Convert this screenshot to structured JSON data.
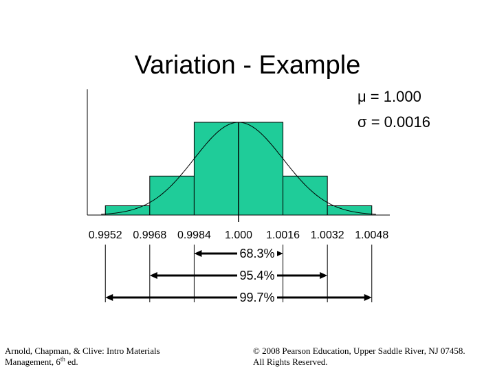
{
  "slide": {
    "title": "Variation - Example",
    "footer_left": {
      "line1": "Arnold, Chapman, & Clive: Intro Materials",
      "line2_pre": "Management, 6",
      "line2_sup": "th",
      "line2_post": " ed."
    },
    "footer_right": {
      "line1": "© 2008 Pearson Education, Upper Saddle River, NJ 07458.",
      "line2": "All Rights Reserved."
    }
  },
  "chart_data": {
    "type": "bar",
    "categories": [
      "0.9952",
      "0.9968",
      "0.9984",
      "1.000",
      "1.0016",
      "1.0032",
      "1.0048"
    ],
    "bars": [
      {
        "from": 0.9952,
        "to": 0.9968,
        "value": 0.1
      },
      {
        "from": 0.9968,
        "to": 0.9984,
        "value": 0.42
      },
      {
        "from": 0.9984,
        "to": 1.0016,
        "value": 1.0
      },
      {
        "from": 1.0016,
        "to": 1.0032,
        "value": 0.42
      },
      {
        "from": 1.0032,
        "to": 1.0048,
        "value": 0.1
      }
    ],
    "curve": {
      "type": "normal",
      "mean": 1.0,
      "sd": 0.0016
    },
    "stats": {
      "mu_symbol": "μ",
      "mu_value": " = 1.000",
      "sigma_symbol": "σ",
      "sigma_value": " = 0.0016"
    },
    "intervals": [
      {
        "label": "68.3%",
        "from": 0.9984,
        "to": 1.0016
      },
      {
        "label": "95.4%",
        "from": 0.9968,
        "to": 1.0032
      },
      {
        "label": "99.7%",
        "from": 0.9952,
        "to": 1.0048
      }
    ],
    "colors": {
      "bar_fill": "#1FCC99",
      "line": "#000000"
    },
    "xlim": [
      0.99455,
      1.00545
    ],
    "ylim": [
      0,
      1.0
    ],
    "grid": false,
    "legend": "none"
  }
}
